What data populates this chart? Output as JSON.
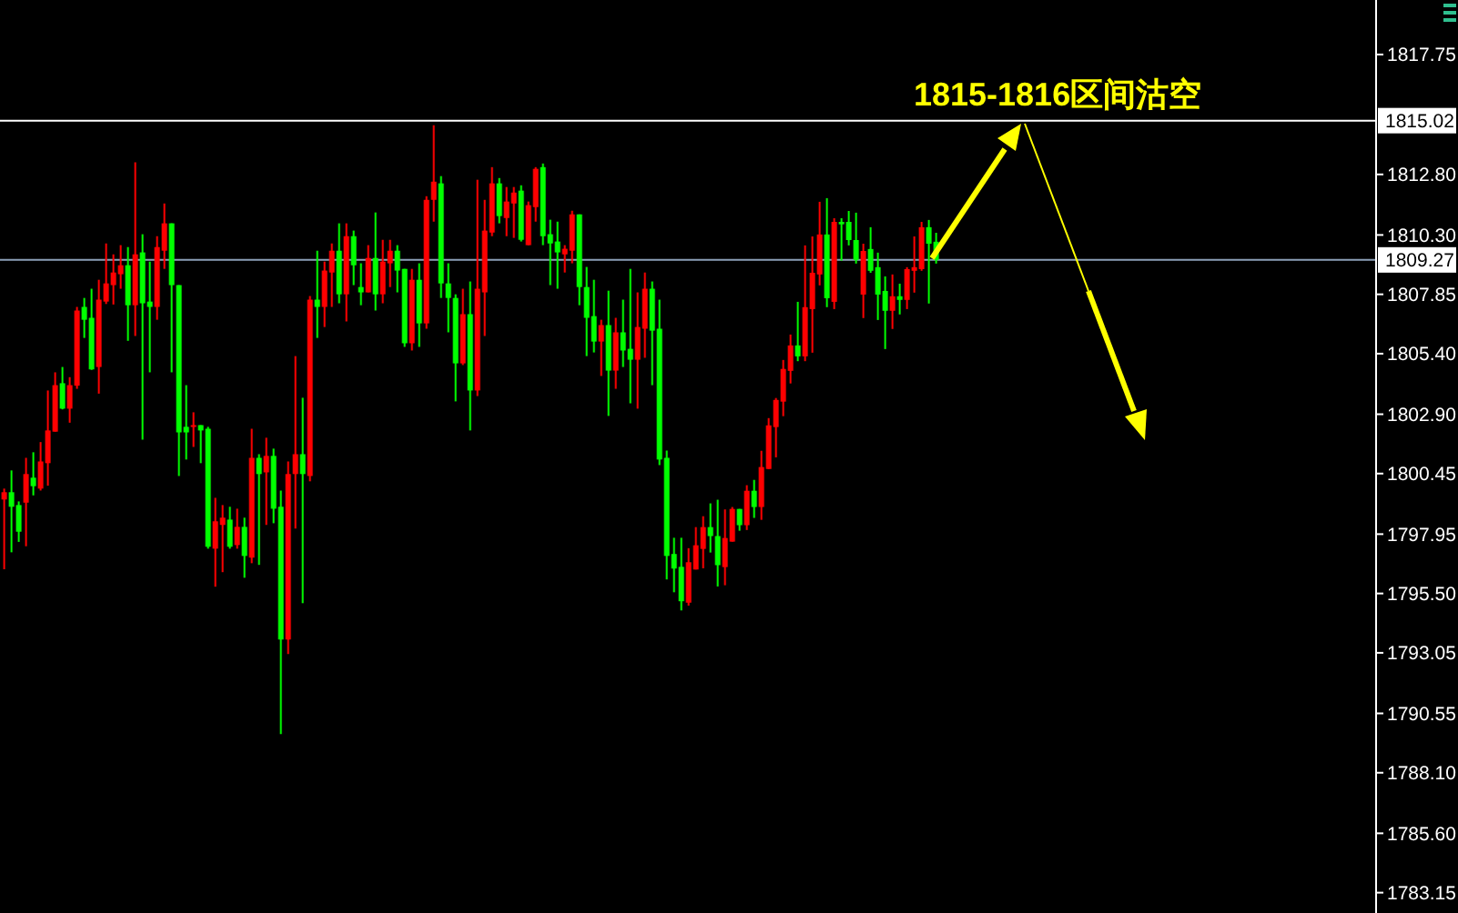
{
  "chart_data": {
    "type": "candlestick",
    "categories": [
      null,
      null,
      null,
      null,
      null,
      null,
      null,
      null,
      null,
      null,
      null,
      null,
      null,
      null,
      null,
      null,
      null,
      null,
      null,
      null,
      null,
      null,
      null,
      null,
      null,
      null,
      null,
      null,
      null,
      null,
      null,
      null,
      null,
      null,
      null,
      null,
      null,
      null,
      null,
      null,
      null,
      null,
      null,
      null,
      null,
      null,
      null,
      null,
      null,
      null,
      null,
      null,
      null,
      null,
      null,
      null,
      null,
      null,
      null,
      null,
      null,
      null,
      null,
      null,
      null,
      null,
      null,
      null,
      null,
      null,
      null,
      null,
      null,
      null,
      null,
      null,
      null,
      null,
      null,
      null,
      null,
      null,
      null,
      null,
      null,
      null,
      null,
      null,
      null,
      null,
      null,
      null,
      null,
      null,
      null,
      null,
      null,
      null,
      null,
      null,
      null,
      null,
      null,
      null,
      null,
      null,
      null,
      null,
      null,
      null,
      null,
      null,
      null,
      null,
      null,
      null,
      null,
      null,
      null,
      null,
      null,
      null,
      null,
      null,
      null,
      null,
      null,
      null,
      null,
      null,
      null,
      null,
      null,
      null,
      null,
      null,
      null,
      null,
      null,
      null,
      null,
      null,
      null,
      null,
      null,
      null,
      null,
      null,
      null,
      null,
      null,
      null,
      null,
      null,
      null,
      null,
      null,
      null,
      null,
      null,
      null,
      null,
      null,
      null,
      null,
      null,
      null,
      null,
      null,
      null,
      null,
      null,
      null,
      null,
      null,
      null,
      null,
      null,
      null,
      null,
      null,
      null,
      null,
      null,
      null,
      null,
      null,
      null,
      null
    ],
    "ohlc": [
      [
        1799.38,
        1799.83,
        1796.5,
        1799.68
      ],
      [
        1799.68,
        1800.58,
        1797.2,
        1799.08
      ],
      [
        1799.15,
        1799.3,
        1797.63,
        1798.05
      ],
      [
        1799.25,
        1801.1,
        1797.45,
        1800.43
      ],
      [
        1800.28,
        1801.33,
        1799.55,
        1799.93
      ],
      [
        1799.83,
        1801.75,
        1799.75,
        1800.95
      ],
      [
        1800.88,
        1803.88,
        1799.95,
        1802.23
      ],
      [
        1802.18,
        1804.63,
        1802.18,
        1804.1
      ],
      [
        1804.18,
        1804.85,
        1803.1,
        1803.13
      ],
      [
        1803.13,
        1804.43,
        1802.55,
        1804.1
      ],
      [
        1804.08,
        1807.33,
        1803.95,
        1807.18
      ],
      [
        1807.33,
        1807.7,
        1806.05,
        1806.8
      ],
      [
        1806.88,
        1808.08,
        1804.73,
        1804.75
      ],
      [
        1804.85,
        1808.45,
        1803.75,
        1807.63
      ],
      [
        1807.55,
        1809.95,
        1807.45,
        1808.3
      ],
      [
        1808.23,
        1809.5,
        1807.43,
        1808.75
      ],
      [
        1808.68,
        1809.88,
        1808.08,
        1809.05
      ],
      [
        1809.05,
        1809.8,
        1805.93,
        1807.4
      ],
      [
        1807.4,
        1813.3,
        1806.13,
        1809.5
      ],
      [
        1809.58,
        1810.33,
        1801.85,
        1807.48
      ],
      [
        1807.55,
        1809.2,
        1804.63,
        1807.33
      ],
      [
        1807.33,
        1810.25,
        1806.8,
        1809.8
      ],
      [
        1809.65,
        1811.6,
        1808.9,
        1810.78
      ],
      [
        1810.78,
        1810.78,
        1804.63,
        1808.23
      ],
      [
        1808.23,
        1808.23,
        1800.35,
        1802.15
      ],
      [
        1802.38,
        1804.1,
        1801.03,
        1802.15
      ],
      [
        1802.38,
        1802.98,
        1801.55,
        1802.45
      ],
      [
        1802.45,
        1802.45,
        1800.88,
        1802.23
      ],
      [
        1802.3,
        1802.38,
        1797.35,
        1797.43
      ],
      [
        1797.35,
        1799.45,
        1795.78,
        1798.48
      ],
      [
        1798.33,
        1799.15,
        1796.38,
        1798.63
      ],
      [
        1798.55,
        1799.08,
        1797.35,
        1797.43
      ],
      [
        1797.5,
        1799.0,
        1797.35,
        1798.25
      ],
      [
        1798.25,
        1798.63,
        1796.15,
        1797.05
      ],
      [
        1796.98,
        1802.3,
        1796.75,
        1801.1
      ],
      [
        1801.1,
        1801.25,
        1796.68,
        1800.43
      ],
      [
        1800.5,
        1801.93,
        1798.33,
        1801.18
      ],
      [
        1801.18,
        1801.48,
        1798.4,
        1799.0
      ],
      [
        1799.08,
        1799.75,
        1789.7,
        1793.6
      ],
      [
        1793.6,
        1800.95,
        1793.0,
        1800.43
      ],
      [
        1800.43,
        1805.3,
        1798.18,
        1801.25
      ],
      [
        1801.25,
        1803.58,
        1795.1,
        1800.43
      ],
      [
        1800.35,
        1807.78,
        1800.13,
        1807.63
      ],
      [
        1807.63,
        1809.65,
        1806.05,
        1807.33
      ],
      [
        1807.33,
        1809.2,
        1806.5,
        1808.83
      ],
      [
        1808.75,
        1809.95,
        1807.33,
        1809.65
      ],
      [
        1809.65,
        1810.78,
        1807.48,
        1807.85
      ],
      [
        1807.85,
        1810.78,
        1806.73,
        1810.25
      ],
      [
        1810.25,
        1810.48,
        1808.23,
        1809.05
      ],
      [
        1808.15,
        1809.13,
        1807.4,
        1807.93
      ],
      [
        1807.93,
        1809.88,
        1807.93,
        1809.35
      ],
      [
        1809.35,
        1811.23,
        1807.18,
        1807.85
      ],
      [
        1807.85,
        1810.1,
        1807.48,
        1809.2
      ],
      [
        1809.13,
        1810.1,
        1808.15,
        1809.65
      ],
      [
        1809.65,
        1809.88,
        1807.93,
        1808.83
      ],
      [
        1808.9,
        1808.9,
        1805.68,
        1805.83
      ],
      [
        1805.83,
        1808.9,
        1805.53,
        1808.45
      ],
      [
        1808.45,
        1809.13,
        1805.68,
        1806.65
      ],
      [
        1806.65,
        1811.9,
        1806.43,
        1811.75
      ],
      [
        1811.75,
        1814.83,
        1810.85,
        1812.5
      ],
      [
        1812.43,
        1812.73,
        1807.7,
        1808.3
      ],
      [
        1808.3,
        1809.13,
        1806.28,
        1807.7
      ],
      [
        1807.7,
        1807.85,
        1803.43,
        1805.0
      ],
      [
        1805.0,
        1808.08,
        1804.93,
        1807.03
      ],
      [
        1807.03,
        1808.38,
        1802.23,
        1803.88
      ],
      [
        1803.88,
        1812.58,
        1803.65,
        1808.08
      ],
      [
        1807.93,
        1811.75,
        1806.13,
        1810.48
      ],
      [
        1810.4,
        1813.1,
        1810.25,
        1812.43
      ],
      [
        1812.43,
        1812.65,
        1810.78,
        1811.08
      ],
      [
        1811.0,
        1812.28,
        1810.25,
        1811.68
      ],
      [
        1811.6,
        1812.28,
        1810.18,
        1812.05
      ],
      [
        1812.13,
        1812.35,
        1810.03,
        1810.1
      ],
      [
        1809.88,
        1811.68,
        1809.88,
        1811.53
      ],
      [
        1811.45,
        1813.1,
        1810.85,
        1813.03
      ],
      [
        1813.1,
        1813.25,
        1809.88,
        1810.25
      ],
      [
        1810.33,
        1810.93,
        1808.23,
        1809.95
      ],
      [
        1810.03,
        1810.85,
        1808.08,
        1809.58
      ],
      [
        1809.5,
        1809.88,
        1808.75,
        1809.73
      ],
      [
        1809.65,
        1811.3,
        1809.13,
        1811.15
      ],
      [
        1811.15,
        1811.15,
        1807.4,
        1808.15
      ],
      [
        1808.15,
        1808.98,
        1805.3,
        1806.88
      ],
      [
        1806.95,
        1808.45,
        1805.45,
        1805.9
      ],
      [
        1805.9,
        1806.8,
        1804.48,
        1806.58
      ],
      [
        1806.58,
        1808.0,
        1802.83,
        1804.7
      ],
      [
        1804.7,
        1806.88,
        1803.95,
        1806.28
      ],
      [
        1806.28,
        1807.63,
        1804.85,
        1805.53
      ],
      [
        1805.6,
        1808.9,
        1803.35,
        1805.15
      ],
      [
        1805.15,
        1807.93,
        1803.13,
        1806.5
      ],
      [
        1806.43,
        1808.75,
        1805.23,
        1808.08
      ],
      [
        1808.08,
        1808.38,
        1804.1,
        1806.35
      ],
      [
        1806.43,
        1807.63,
        1800.8,
        1801.03
      ],
      [
        1801.1,
        1801.4,
        1796.08,
        1797.05
      ],
      [
        1797.13,
        1797.8,
        1795.55,
        1796.53
      ],
      [
        1796.6,
        1797.8,
        1794.8,
        1795.18
      ],
      [
        1795.12,
        1797.37,
        1795.0,
        1796.79
      ],
      [
        1796.49,
        1798.24,
        1796.49,
        1797.49
      ],
      [
        1797.34,
        1798.69,
        1796.54,
        1798.24
      ],
      [
        1798.24,
        1799.22,
        1797.19,
        1797.87
      ],
      [
        1797.87,
        1799.37,
        1795.79,
        1796.67
      ],
      [
        1796.59,
        1798.97,
        1795.84,
        1797.79
      ],
      [
        1797.64,
        1799.07,
        1797.64,
        1798.99
      ],
      [
        1798.99,
        1798.99,
        1798.09,
        1798.32
      ],
      [
        1798.32,
        1799.97,
        1798.12,
        1799.74
      ],
      [
        1799.74,
        1800.19,
        1798.62,
        1799.07
      ],
      [
        1799.07,
        1801.39,
        1798.54,
        1800.72
      ],
      [
        1800.64,
        1802.74,
        1800.64,
        1802.44
      ],
      [
        1802.37,
        1803.57,
        1801.12,
        1803.49
      ],
      [
        1803.42,
        1805.14,
        1802.82,
        1804.77
      ],
      [
        1804.69,
        1806.19,
        1804.17,
        1805.74
      ],
      [
        1805.74,
        1807.54,
        1805.09,
        1805.29
      ],
      [
        1805.29,
        1809.87,
        1805.09,
        1807.32
      ],
      [
        1807.24,
        1810.24,
        1805.44,
        1808.74
      ],
      [
        1808.67,
        1811.67,
        1808.22,
        1810.32
      ],
      [
        1810.32,
        1811.82,
        1807.32,
        1807.69
      ],
      [
        1807.54,
        1810.99,
        1807.24,
        1810.84
      ],
      [
        1810.84,
        1810.99,
        1809.24,
        1810.74
      ],
      [
        1810.84,
        1811.29,
        1809.87,
        1810.09
      ],
      [
        1810.09,
        1811.22,
        1809.12,
        1809.27
      ],
      [
        1807.84,
        1809.94,
        1806.87,
        1809.64
      ],
      [
        1809.72,
        1810.62,
        1808.74,
        1808.82
      ],
      [
        1808.97,
        1809.57,
        1806.79,
        1807.84
      ],
      [
        1807.99,
        1808.59,
        1805.59,
        1807.17
      ],
      [
        1807.17,
        1808.67,
        1806.42,
        1807.77
      ],
      [
        1807.77,
        1808.29,
        1807.02,
        1807.62
      ],
      [
        1807.62,
        1808.97,
        1807.24,
        1808.89
      ],
      [
        1808.82,
        1810.24,
        1807.92,
        1808.97
      ],
      [
        1808.89,
        1810.84,
        1808.82,
        1810.62
      ],
      [
        1810.62,
        1810.92,
        1807.47,
        1809.94
      ],
      [
        1810.02,
        1810.39,
        1809.12,
        1809.27
      ],
      null,
      null,
      null,
      null,
      null,
      null,
      null,
      null,
      null,
      null,
      null,
      null,
      null,
      null,
      null,
      null,
      null,
      null,
      null,
      null,
      null,
      null,
      null,
      null,
      null,
      null,
      null,
      null,
      null,
      null,
      null,
      null,
      null,
      null,
      null,
      null,
      null,
      null,
      null,
      null,
      null,
      null,
      null,
      null,
      null,
      null,
      null,
      null,
      null,
      null,
      null,
      null,
      null,
      null,
      null,
      null,
      null,
      null,
      null,
      null
    ],
    "colors": [
      "#ff0000",
      "#00ff00",
      "#00ff00",
      "#ff0000",
      "#00ff00",
      "#ff0000",
      "#ff0000",
      "#ff0000",
      "#00ff00",
      "#ff0000",
      "#ff0000",
      "#00ff00",
      "#00ff00",
      "#ff0000",
      "#ff0000",
      "#ff0000",
      "#ff0000",
      "#00ff00",
      "#ff0000",
      "#00ff00",
      "#00ff00",
      "#ff0000",
      "#ff0000",
      "#00ff00",
      "#00ff00",
      "#00ff00",
      "#ff0000",
      "#00ff00",
      "#00ff00",
      "#ff0000",
      "#ff0000",
      "#00ff00",
      "#ff0000",
      "#00ff00",
      "#ff0000",
      "#00ff00",
      "#ff0000",
      "#00ff00",
      "#00ff00",
      "#ff0000",
      "#ff0000",
      "#00ff00",
      "#ff0000",
      "#00ff00",
      "#ff0000",
      "#ff0000",
      "#00ff00",
      "#ff0000",
      "#00ff00",
      "#00ff00",
      "#ff0000",
      "#00ff00",
      "#ff0000",
      "#ff0000",
      "#00ff00",
      "#00ff00",
      "#ff0000",
      "#00ff00",
      "#ff0000",
      "#ff0000",
      "#00ff00",
      "#00ff00",
      "#00ff00",
      "#ff0000",
      "#00ff00",
      "#ff0000",
      "#ff0000",
      "#ff0000",
      "#00ff00",
      "#ff0000",
      "#ff0000",
      "#00ff00",
      "#ff0000",
      "#ff0000",
      "#00ff00",
      "#00ff00",
      "#00ff00",
      "#ff0000",
      "#ff0000",
      "#00ff00",
      "#00ff00",
      "#00ff00",
      "#ff0000",
      "#00ff00",
      "#ff0000",
      "#00ff00",
      "#00ff00",
      "#ff0000",
      "#ff0000",
      "#00ff00",
      "#00ff00",
      "#00ff00",
      "#00ff00",
      "#00ff00",
      "#ff0000",
      "#ff0000",
      "#ff0000",
      "#00ff00",
      "#00ff00",
      "#ff0000",
      "#ff0000",
      "#00ff00",
      "#ff0000",
      "#00ff00",
      "#ff0000",
      "#ff0000",
      "#ff0000",
      "#ff0000",
      "#ff0000",
      "#00ff00",
      "#ff0000",
      "#ff0000",
      "#ff0000",
      "#00ff00",
      "#ff0000",
      "#00ff00",
      "#00ff00",
      "#00ff00",
      "#ff0000",
      "#00ff00",
      "#00ff00",
      "#00ff00",
      "#ff0000",
      "#00ff00",
      "#ff0000",
      "#ff0000",
      "#ff0000",
      "#00ff00",
      "#00ff00",
      null,
      null,
      null,
      null,
      null,
      null,
      null,
      null,
      null,
      null,
      null,
      null,
      null,
      null,
      null,
      null,
      null,
      null,
      null,
      null,
      null,
      null,
      null,
      null,
      null,
      null,
      null,
      null,
      null,
      null,
      null,
      null,
      null,
      null,
      null,
      null,
      null,
      null,
      null,
      null,
      null,
      null,
      null,
      null,
      null,
      null,
      null,
      null,
      null,
      null,
      null,
      null,
      null,
      null,
      null,
      null,
      null,
      null,
      null,
      null
    ],
    "ylim": [
      1782.31,
      1820.0
    ],
    "yticks": [
      1817.75,
      {
        "value": 1812.8,
        "label": "1812.80"
      },
      {
        "value": 1810.3,
        "label": "1810.30"
      },
      1807.85,
      {
        "value": 1805.4,
        "label": "1805.40"
      },
      {
        "value": 1802.9,
        "label": "1802.90"
      },
      1800.45,
      1797.95,
      {
        "value": 1795.5,
        "label": "1795.50"
      },
      1793.05,
      1790.55,
      {
        "value": 1788.1,
        "label": "1788.10"
      },
      {
        "value": 1785.6,
        "label": "1785.60"
      },
      1783.15
    ],
    "ref_lines": [
      {
        "axis": "y",
        "value": 1815.02,
        "label": "1815.02",
        "color": "#ffffff"
      },
      {
        "axis": "y",
        "value": 1809.27,
        "label": "1809.27",
        "color": "#8c9fb8"
      }
    ],
    "annotations": [
      "1815-1816区间沽空"
    ],
    "grid": false
  }
}
